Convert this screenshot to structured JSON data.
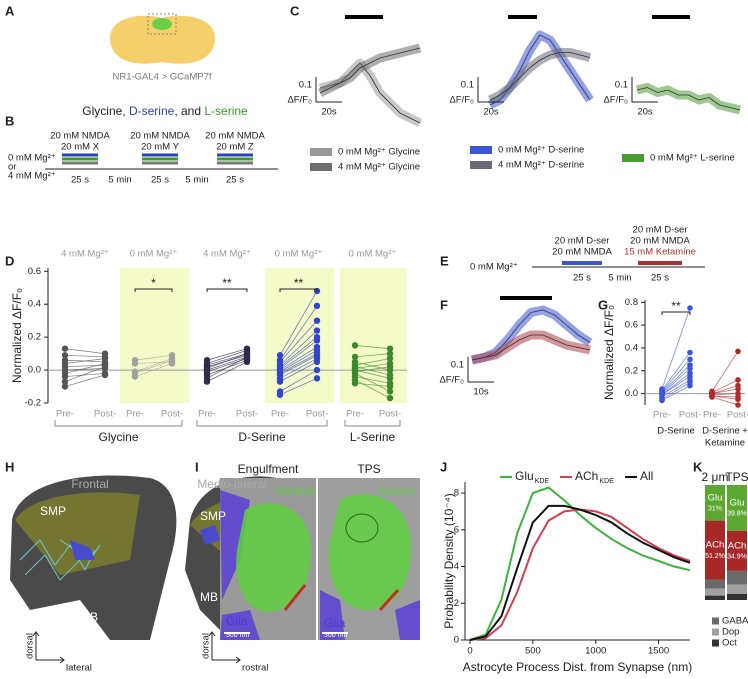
{
  "panels": {
    "A": {
      "label": "A",
      "caption": "NR1-GAL4 > GCaMP7f"
    },
    "B": {
      "label": "B",
      "title": [
        {
          "text": "Glycine, ",
          "color": "#222222"
        },
        {
          "text": "D-serine",
          "color": "#2b3fc4"
        },
        {
          "text": ", and ",
          "color": "#222222"
        },
        {
          "text": "L-serine",
          "color": "#3a9a2a"
        }
      ],
      "conditions": [
        "0 mM Mg²⁺",
        "or",
        "4 mM Mg²⁺"
      ],
      "pulses": [
        [
          "20 mM NMDA",
          "20 mM X"
        ],
        [
          "20 mM NMDA",
          "20 mM Y"
        ],
        [
          "20 mM NMDA",
          "20 mM Z"
        ]
      ],
      "intervals": [
        "25 s",
        "5 min",
        "25 s",
        "5 min",
        "25 s"
      ]
    },
    "C": {
      "label": "C",
      "plots": [
        {
          "scale": {
            "value": 0.1,
            "unit": "ΔF/F₀",
            "time": "20s"
          },
          "series": [
            {
              "name": "0 mM Mg²⁺ Glycine",
              "color": "#9a9a9a",
              "values": [
                0,
                0.01,
                0.02,
                0.06,
                0.1,
                0.05,
                -0.02,
                -0.06,
                -0.1,
                -0.12,
                -0.14
              ]
            },
            {
              "name": "4 mM Mg²⁺ Glycine",
              "color": "#6e6e6e",
              "values": [
                -0.02,
                0,
                0.02,
                0.04,
                0.08,
                0.1,
                0.12,
                0.13,
                0.14,
                0.15,
                0.16
              ]
            }
          ]
        },
        {
          "scale": {
            "value": 0.1,
            "unit": "ΔF/F₀",
            "time": "20s"
          },
          "series": [
            {
              "name": "0 mM Mg²⁺ D-serine",
              "color": "#3b55d6",
              "values": [
                -0.02,
                0,
                0.05,
                0.12,
                0.2,
                0.26,
                0.24,
                0.18,
                0.12,
                0.06,
                0
              ]
            },
            {
              "name": "4 mM Mg²⁺ D-serine",
              "color": "#6a6a78",
              "values": [
                0,
                0.02,
                0.05,
                0.09,
                0.13,
                0.16,
                0.18,
                0.19,
                0.19,
                0.18,
                0.17
              ]
            }
          ]
        },
        {
          "scale": {
            "value": 0.1,
            "unit": "ΔF/F₀",
            "time": "20s"
          },
          "series": [
            {
              "name": "0 mM Mg²⁺ L-serine",
              "color": "#4c9a34",
              "values": [
                0,
                0.01,
                -0.01,
                0,
                -0.02,
                -0.02,
                -0.04,
                -0.03,
                -0.06,
                -0.07,
                -0.08
              ]
            }
          ]
        }
      ]
    },
    "D": {
      "label": "D",
      "ylabel": "Normalized ΔF/F₀",
      "ylim": [
        -0.2,
        0.62
      ],
      "yticks": [
        -0.2,
        {
          "value": 0,
          "label": "0.0"
        },
        0.2,
        0.4,
        0.6
      ],
      "groups": [
        {
          "condition": "4 mM Mg²⁺",
          "highlight": false,
          "color": "#555555",
          "ticks": [
            "Pre-",
            "Post-"
          ],
          "pre": [
            0.13,
            0.09,
            0.06,
            0.04,
            0.02,
            0,
            -0.02,
            -0.04,
            -0.07,
            -0.1
          ],
          "post": [
            0.1,
            0.08,
            0.05,
            0.07,
            0.03,
            0.01,
            0.04,
            -0.02,
            0.02,
            -0.03
          ]
        },
        {
          "condition": "0 mM Mg²⁺",
          "highlight": true,
          "color": "#a0a0a0",
          "ticks": [
            "Pre-",
            "Post-"
          ],
          "significance": "*",
          "pre": [
            0.06,
            0.04,
            -0.01,
            -0.02,
            -0.04
          ],
          "post": [
            0.09,
            0.05,
            0.07,
            0.06,
            0.04
          ]
        },
        {
          "condition": "4 mM Mg²⁺",
          "highlight": false,
          "color": "#2c2c4a",
          "ticks": [
            "Pre-",
            "Post-"
          ],
          "significance": "**",
          "pre": [
            0.06,
            0.04,
            0.03,
            0.02,
            0.01,
            0,
            -0.01,
            -0.03,
            -0.05,
            -0.07
          ],
          "post": [
            0.13,
            0.12,
            0.1,
            0.09,
            0.1,
            0.08,
            0.07,
            0.06,
            0.08,
            0.05
          ]
        },
        {
          "condition": "0 mM Mg²⁺",
          "highlight": true,
          "color": "#3344cc",
          "ticks": [
            "Pre-",
            "Post-"
          ],
          "significance": "**",
          "pre": [
            0.09,
            0.06,
            0.05,
            0.03,
            0.02,
            0.01,
            0,
            -0.01,
            -0.02,
            -0.03,
            -0.05,
            -0.07,
            -0.13,
            -0.15
          ],
          "post": [
            0.48,
            0.39,
            0.3,
            0.24,
            0.2,
            0.18,
            0.14,
            0.12,
            0.1,
            0.09,
            0.07,
            0.05,
            0,
            -0.05
          ]
        },
        {
          "condition": "0 mM Mg²⁺",
          "highlight": true,
          "color": "#3a8a2a",
          "ticks": [
            "Pre-",
            "Post-"
          ],
          "pre": [
            0.15,
            0.08,
            0.05,
            0.03,
            0.02,
            0.01,
            0,
            -0.01,
            -0.02,
            -0.04,
            -0.06,
            -0.08
          ],
          "post": [
            0.13,
            0.1,
            0,
            0.07,
            -0.03,
            0.04,
            -0.05,
            0.02,
            -0.13,
            -0.08,
            -0.17,
            -0.1
          ]
        }
      ],
      "compounds": [
        "Glycine",
        "D-Serine",
        "L-Serine"
      ]
    },
    "E": {
      "label": "E",
      "condition": "0 mM Mg²⁺",
      "pulses": [
        {
          "color": "#3b55d6",
          "lines": [
            {
              "text": "20 mM D-ser"
            },
            {
              "text": "20 mM NMDA"
            }
          ]
        },
        {
          "color": "#b03030",
          "lines": [
            {
              "text": "20 mM D-ser"
            },
            {
              "text": "20 mM NMDA"
            },
            {
              "text": "15 mM Ketamine",
              "color": "#b03030"
            }
          ]
        }
      ],
      "intervals": [
        "25 s",
        "5 min",
        "25 s"
      ]
    },
    "F": {
      "label": "F",
      "scale": {
        "value": 0.1,
        "unit": "ΔF/F₀",
        "time": "10s"
      },
      "series": [
        {
          "color": "#3b55d6",
          "values": [
            0,
            0.01,
            0.03,
            0.08,
            0.14,
            0.19,
            0.2,
            0.18,
            0.14,
            0.1,
            0.07
          ]
        },
        {
          "color": "#b04048",
          "values": [
            0,
            0.01,
            0.02,
            0.05,
            0.08,
            0.1,
            0.1,
            0.08,
            0.06,
            0.05,
            0.04
          ]
        }
      ]
    },
    "G": {
      "label": "G",
      "ylabel": "Normalized ΔF/F₀",
      "ylim": [
        -0.1,
        0.82
      ],
      "yticks": [
        {
          "value": 0,
          "label": "0.0"
        },
        0.2,
        0.4,
        0.6,
        0.8
      ],
      "groups": [
        {
          "name": [
            "D-Serine"
          ],
          "color": "#3b55d6",
          "ticks": [
            "Pre-",
            "Post-"
          ],
          "significance": "**",
          "pre": [
            0.04,
            0.03,
            0.02,
            0.01,
            0,
            -0.01,
            -0.01,
            -0.03,
            -0.05,
            -0.06
          ],
          "post": [
            0.75,
            0.36,
            0.3,
            0.25,
            0.22,
            0.18,
            0.15,
            0.12,
            0.1,
            0.07
          ]
        },
        {
          "name": [
            "D-Serine +",
            "Ketamine"
          ],
          "color": "#b02a2a",
          "ticks": [
            "Pre-",
            "Post-"
          ],
          "pre": [
            0.02,
            0.01,
            0,
            0,
            -0.01,
            -0.02,
            -0.02,
            -0.03
          ],
          "post": [
            0.37,
            0.12,
            0.07,
            0.04,
            0,
            -0.03,
            -0.05,
            -0.1
          ]
        }
      ]
    },
    "H": {
      "label": "H",
      "views": [
        {
          "title": "Frontal",
          "regions": [
            "SMP",
            "MB"
          ],
          "axes": [
            "dorsal",
            "lateral"
          ]
        },
        {
          "title": "Medio-lateral",
          "regions": [
            "SMP",
            "MB"
          ],
          "axes": [
            "dorsal",
            "rostral"
          ]
        }
      ]
    },
    "I": {
      "label": "I",
      "images": [
        {
          "title": "Engulfment",
          "neuron": "Neuron",
          "glia": "Glia",
          "scale": "300 nm"
        },
        {
          "title": "TPS",
          "neuron": "Neuron",
          "glia": "Glia",
          "scale": "300 nm"
        }
      ]
    },
    "J": {
      "label": "J",
      "xlabel": "Astrocyte Process Dist. from Synapse (nm)",
      "ylabel": "Probability Density (10⁻⁴)",
      "xlim": [
        -40,
        1750
      ],
      "xticks": [
        0,
        500,
        1000,
        1500
      ],
      "ylim": [
        0,
        8.6
      ],
      "yticks": [
        0,
        2,
        4,
        6,
        8
      ],
      "x": [
        0,
        125,
        250,
        375,
        500,
        625,
        750,
        875,
        1000,
        1125,
        1250,
        1375,
        1500,
        1625,
        1750
      ],
      "series": [
        {
          "name": "Glu",
          "subscript": "KDE",
          "color": "#3cb53c",
          "values": [
            0,
            0.3,
            2.2,
            5.8,
            8,
            8.3,
            7.6,
            6.8,
            6.1,
            5.5,
            5,
            4.6,
            4.3,
            4,
            3.8
          ]
        },
        {
          "name": "ACh",
          "subscript": "KDE",
          "color": "#d04050",
          "values": [
            0,
            0.1,
            0.8,
            2.6,
            5,
            6.5,
            7,
            7.1,
            7,
            6.7,
            6.1,
            5.5,
            5,
            4.6,
            4.3
          ]
        },
        {
          "name": "All",
          "color": "#111111",
          "values": [
            0,
            0.2,
            1.3,
            3.9,
            6.4,
            7.3,
            7.3,
            7.1,
            6.8,
            6.4,
            5.8,
            5.3,
            4.9,
            4.5,
            4.2
          ]
        }
      ]
    },
    "K": {
      "label": "K",
      "bars": [
        {
          "name": "2 μm",
          "segments": [
            {
              "name": "Glu",
              "value": 31,
              "value_label": "31%",
              "color": "#5aa830"
            },
            {
              "name": "ACh",
              "value": 51.2,
              "value_label": "51.2%",
              "color": "#a82828"
            },
            {
              "name": "GABA",
              "value": 8,
              "color": "#6a6a6a"
            },
            {
              "name": "Dop",
              "value": 6,
              "color": "#a0a0a0"
            },
            {
              "name": "Oct",
              "value": 3.8,
              "color": "#333333"
            }
          ]
        },
        {
          "name": "TPS",
          "segments": [
            {
              "name": "Glu",
              "value": 39.8,
              "value_label": "39.8%",
              "color": "#5aa830"
            },
            {
              "name": "ACh",
              "value": 34.9,
              "value_label": "34.9%",
              "color": "#a82828"
            },
            {
              "name": "GABA",
              "value": 12,
              "color": "#6a6a6a"
            },
            {
              "name": "Dop",
              "value": 8,
              "color": "#a0a0a0"
            },
            {
              "name": "Oct",
              "value": 5.3,
              "color": "#333333"
            }
          ]
        }
      ]
    }
  }
}
